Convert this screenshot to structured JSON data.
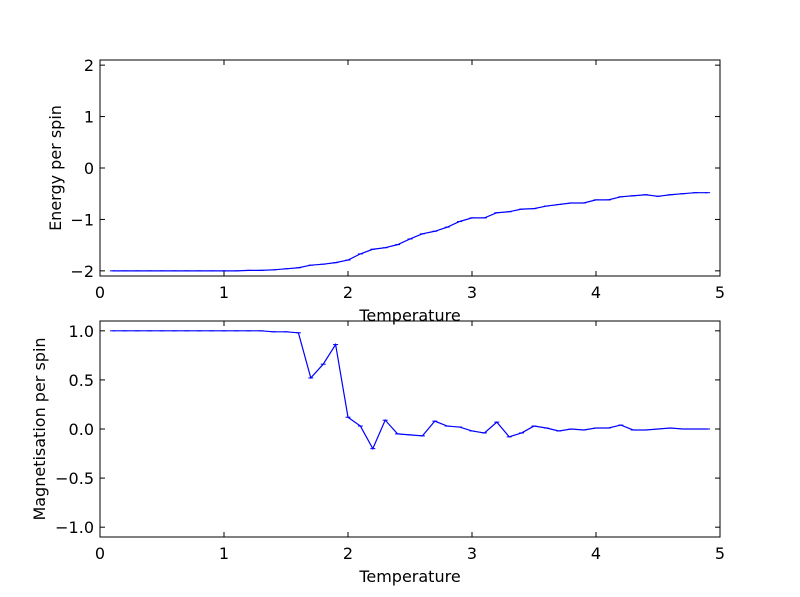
{
  "chart_data": [
    {
      "type": "line",
      "title": "",
      "xlabel": "Temperature",
      "ylabel": "Energy per spin",
      "xlim": [
        0,
        5
      ],
      "ylim": [
        -2.1,
        2.1
      ],
      "xticks": [
        "0",
        "1",
        "2",
        "3",
        "4",
        "5"
      ],
      "yticks": [
        "−2",
        "−1",
        "0",
        "1",
        "2"
      ],
      "grid": false,
      "line_color": "#0000ff",
      "error_bars": true,
      "x": [
        0.1,
        0.2,
        0.3,
        0.4,
        0.5,
        0.6,
        0.7,
        0.8,
        0.9,
        1.0,
        1.1,
        1.2,
        1.3,
        1.4,
        1.5,
        1.6,
        1.7,
        1.8,
        1.9,
        2.0,
        2.1,
        2.2,
        2.3,
        2.4,
        2.5,
        2.6,
        2.7,
        2.8,
        2.9,
        3.0,
        3.1,
        3.2,
        3.3,
        3.4,
        3.5,
        3.6,
        3.7,
        3.8,
        3.9,
        4.0,
        4.1,
        4.2,
        4.3,
        4.4,
        4.5,
        4.6,
        4.7,
        4.8,
        4.9
      ],
      "y": [
        -2.0,
        -2.0,
        -2.0,
        -2.0,
        -2.0,
        -2.0,
        -2.0,
        -2.0,
        -2.0,
        -2.0,
        -2.0,
        -1.99,
        -1.99,
        -1.98,
        -1.96,
        -1.94,
        -1.89,
        -1.87,
        -1.84,
        -1.79,
        -1.67,
        -1.58,
        -1.55,
        -1.49,
        -1.38,
        -1.28,
        -1.23,
        -1.15,
        -1.04,
        -0.97,
        -0.97,
        -0.87,
        -0.85,
        -0.8,
        -0.79,
        -0.74,
        -0.71,
        -0.68,
        -0.68,
        -0.62,
        -0.62,
        -0.56,
        -0.54,
        -0.52,
        -0.55,
        -0.52,
        -0.5,
        -0.48,
        -0.48
      ]
    },
    {
      "type": "line",
      "title": "",
      "xlabel": "Temperature",
      "ylabel": "Magnetisation per spin",
      "xlim": [
        0,
        5
      ],
      "ylim": [
        -1.1,
        1.1
      ],
      "xticks": [
        "0",
        "1",
        "2",
        "3",
        "4",
        "5"
      ],
      "yticks": [
        "−1.0",
        "−0.5",
        "0.0",
        "0.5",
        "1.0"
      ],
      "grid": false,
      "line_color": "#0000ff",
      "error_bars": true,
      "x": [
        0.1,
        0.2,
        0.3,
        0.4,
        0.5,
        0.6,
        0.7,
        0.8,
        0.9,
        1.0,
        1.1,
        1.2,
        1.3,
        1.4,
        1.5,
        1.6,
        1.7,
        1.8,
        1.9,
        2.0,
        2.1,
        2.2,
        2.3,
        2.4,
        2.5,
        2.6,
        2.7,
        2.8,
        2.9,
        3.0,
        3.1,
        3.2,
        3.3,
        3.4,
        3.5,
        3.6,
        3.7,
        3.8,
        3.9,
        4.0,
        4.1,
        4.2,
        4.3,
        4.4,
        4.5,
        4.6,
        4.7,
        4.8,
        4.9
      ],
      "y": [
        1.0,
        1.0,
        1.0,
        1.0,
        1.0,
        1.0,
        1.0,
        1.0,
        1.0,
        1.0,
        1.0,
        1.0,
        1.0,
        0.99,
        0.99,
        0.98,
        0.52,
        0.66,
        0.86,
        0.12,
        0.03,
        -0.2,
        0.09,
        -0.05,
        -0.06,
        -0.07,
        0.08,
        0.03,
        0.02,
        -0.02,
        -0.04,
        0.07,
        -0.08,
        -0.04,
        0.03,
        0.01,
        -0.02,
        0.0,
        -0.01,
        0.01,
        0.01,
        0.04,
        -0.01,
        -0.01,
        0.0,
        0.01,
        0.0,
        0.0,
        0.0
      ]
    }
  ]
}
